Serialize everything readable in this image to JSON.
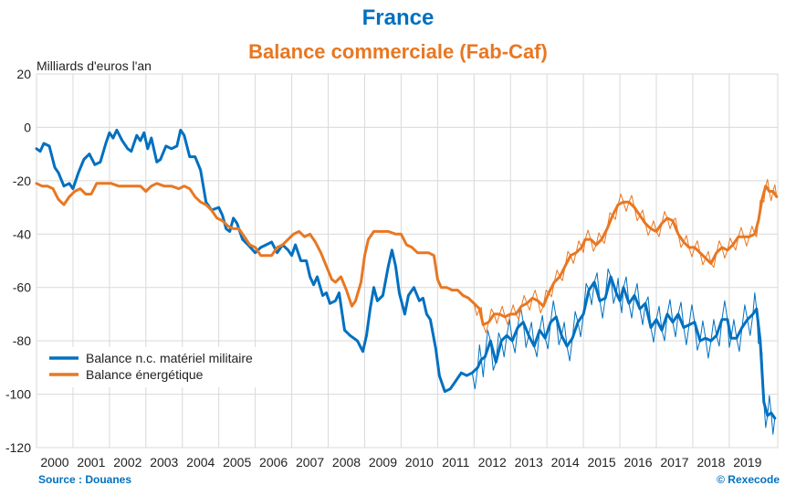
{
  "title": "France",
  "subtitle": "Balance commerciale (Fab-Caf)",
  "unit_label": "Milliards d'euros l'an",
  "source": "Source : Douanes",
  "copyright": "© Rexecode",
  "colors": {
    "blue": "#0070c0",
    "orange": "#e87722",
    "grid": "#d9d9d9"
  },
  "chart_data": {
    "type": "line",
    "xlabel": "",
    "ylabel": "Milliards d'euros l'an",
    "xlim": [
      2000,
      2020.33
    ],
    "ylim": [
      -120,
      20
    ],
    "yticks": [
      20,
      0,
      -20,
      -40,
      -60,
      -80,
      -100,
      -120
    ],
    "xticks": [
      "2000",
      "2001",
      "2002",
      "2003",
      "2004",
      "2005",
      "2006",
      "2007",
      "2008",
      "2009",
      "2010",
      "2011",
      "2012",
      "2013",
      "2014",
      "2015",
      "2016",
      "2017",
      "2018",
      "2019"
    ],
    "legend_position": "bottom-left",
    "series": [
      {
        "name": "Balance n.c. matériel militaire",
        "color": "#0070c0",
        "points": [
          [
            2000.0,
            -8
          ],
          [
            2000.1,
            -9
          ],
          [
            2000.2,
            -6
          ],
          [
            2000.35,
            -7
          ],
          [
            2000.5,
            -15
          ],
          [
            2000.6,
            -17
          ],
          [
            2000.75,
            -22
          ],
          [
            2000.9,
            -21
          ],
          [
            2001.0,
            -23
          ],
          [
            2001.15,
            -17
          ],
          [
            2001.3,
            -12
          ],
          [
            2001.45,
            -10
          ],
          [
            2001.6,
            -14
          ],
          [
            2001.75,
            -13
          ],
          [
            2001.9,
            -6
          ],
          [
            2002.0,
            -2
          ],
          [
            2002.1,
            -4
          ],
          [
            2002.2,
            -1
          ],
          [
            2002.35,
            -5
          ],
          [
            2002.5,
            -8
          ],
          [
            2002.6,
            -9
          ],
          [
            2002.75,
            -3
          ],
          [
            2002.85,
            -5
          ],
          [
            2002.95,
            -2
          ],
          [
            2003.05,
            -8
          ],
          [
            2003.15,
            -4
          ],
          [
            2003.3,
            -13
          ],
          [
            2003.4,
            -12
          ],
          [
            2003.55,
            -7
          ],
          [
            2003.7,
            -8
          ],
          [
            2003.85,
            -7
          ],
          [
            2003.95,
            -1
          ],
          [
            2004.05,
            -3
          ],
          [
            2004.2,
            -11
          ],
          [
            2004.35,
            -11
          ],
          [
            2004.5,
            -16
          ],
          [
            2004.65,
            -28
          ],
          [
            2004.8,
            -31
          ],
          [
            2005.0,
            -30
          ],
          [
            2005.1,
            -33
          ],
          [
            2005.2,
            -38
          ],
          [
            2005.3,
            -39
          ],
          [
            2005.4,
            -34
          ],
          [
            2005.5,
            -36
          ],
          [
            2005.65,
            -42
          ],
          [
            2005.8,
            -44
          ],
          [
            2006.0,
            -47
          ],
          [
            2006.15,
            -45
          ],
          [
            2006.3,
            -44
          ],
          [
            2006.45,
            -43
          ],
          [
            2006.6,
            -47
          ],
          [
            2006.75,
            -44
          ],
          [
            2006.9,
            -46
          ],
          [
            2007.0,
            -48
          ],
          [
            2007.1,
            -44
          ],
          [
            2007.25,
            -50
          ],
          [
            2007.4,
            -50
          ],
          [
            2007.5,
            -56
          ],
          [
            2007.6,
            -59
          ],
          [
            2007.7,
            -56
          ],
          [
            2007.85,
            -63
          ],
          [
            2007.95,
            -62
          ],
          [
            2008.05,
            -66
          ],
          [
            2008.2,
            -65
          ],
          [
            2008.3,
            -62
          ],
          [
            2008.45,
            -76
          ],
          [
            2008.6,
            -78
          ],
          [
            2008.8,
            -80
          ],
          [
            2008.95,
            -84
          ],
          [
            2009.05,
            -78
          ],
          [
            2009.15,
            -68
          ],
          [
            2009.25,
            -60
          ],
          [
            2009.35,
            -65
          ],
          [
            2009.5,
            -63
          ],
          [
            2009.65,
            -52
          ],
          [
            2009.75,
            -46
          ],
          [
            2009.85,
            -52
          ],
          [
            2009.95,
            -62
          ],
          [
            2010.1,
            -70
          ],
          [
            2010.2,
            -63
          ],
          [
            2010.35,
            -60
          ],
          [
            2010.5,
            -65
          ],
          [
            2010.6,
            -64
          ],
          [
            2010.7,
            -70
          ],
          [
            2010.8,
            -72
          ],
          [
            2010.95,
            -83
          ],
          [
            2011.05,
            -93
          ],
          [
            2011.2,
            -99
          ],
          [
            2011.35,
            -98
          ],
          [
            2011.5,
            -95
          ],
          [
            2011.65,
            -92
          ],
          [
            2011.8,
            -93
          ],
          [
            2011.95,
            -92
          ],
          [
            2012.1,
            -90
          ],
          [
            2012.2,
            -87
          ],
          [
            2012.3,
            -86
          ],
          [
            2012.45,
            -80
          ],
          [
            2012.6,
            -88
          ],
          [
            2012.75,
            -80
          ],
          [
            2012.9,
            -78
          ],
          [
            2013.05,
            -80
          ],
          [
            2013.2,
            -75
          ],
          [
            2013.35,
            -73
          ],
          [
            2013.5,
            -78
          ],
          [
            2013.65,
            -82
          ],
          [
            2013.8,
            -76
          ],
          [
            2013.95,
            -79
          ],
          [
            2014.1,
            -73
          ],
          [
            2014.25,
            -71
          ],
          [
            2014.4,
            -78
          ],
          [
            2014.55,
            -82
          ],
          [
            2014.7,
            -79
          ],
          [
            2014.85,
            -73
          ],
          [
            2015.0,
            -70
          ],
          [
            2015.15,
            -61
          ],
          [
            2015.3,
            -58
          ],
          [
            2015.45,
            -65
          ],
          [
            2015.6,
            -64
          ],
          [
            2015.75,
            -56
          ],
          [
            2015.9,
            -62
          ],
          [
            2016.0,
            -65
          ],
          [
            2016.1,
            -60
          ],
          [
            2016.25,
            -66
          ],
          [
            2016.4,
            -63
          ],
          [
            2016.55,
            -68
          ],
          [
            2016.7,
            -66
          ],
          [
            2016.85,
            -75
          ],
          [
            2017.0,
            -72
          ],
          [
            2017.15,
            -76
          ],
          [
            2017.3,
            -70
          ],
          [
            2017.45,
            -73
          ],
          [
            2017.6,
            -70
          ],
          [
            2017.75,
            -75
          ],
          [
            2017.9,
            -74
          ],
          [
            2018.05,
            -73
          ],
          [
            2018.2,
            -80
          ],
          [
            2018.35,
            -79
          ],
          [
            2018.5,
            -80
          ],
          [
            2018.65,
            -78
          ],
          [
            2018.8,
            -72
          ],
          [
            2018.95,
            -72
          ],
          [
            2019.05,
            -79
          ],
          [
            2019.2,
            -79
          ],
          [
            2019.35,
            -75
          ],
          [
            2019.5,
            -72
          ],
          [
            2019.65,
            -70
          ],
          [
            2019.75,
            -68
          ],
          [
            2019.85,
            -80
          ],
          [
            2019.95,
            -103
          ],
          [
            2020.05,
            -108
          ],
          [
            2020.15,
            -107
          ],
          [
            2020.25,
            -109
          ]
        ]
      },
      {
        "name": "Balance énergétique",
        "color": "#e87722",
        "points": [
          [
            2000.0,
            -21
          ],
          [
            2000.15,
            -22
          ],
          [
            2000.3,
            -22
          ],
          [
            2000.45,
            -23
          ],
          [
            2000.6,
            -27
          ],
          [
            2000.75,
            -29
          ],
          [
            2000.9,
            -26
          ],
          [
            2001.05,
            -24
          ],
          [
            2001.2,
            -23
          ],
          [
            2001.35,
            -25
          ],
          [
            2001.5,
            -25
          ],
          [
            2001.65,
            -21
          ],
          [
            2001.85,
            -21
          ],
          [
            2002.05,
            -21
          ],
          [
            2002.25,
            -22
          ],
          [
            2002.45,
            -22
          ],
          [
            2002.65,
            -22
          ],
          [
            2002.85,
            -22
          ],
          [
            2003.0,
            -24
          ],
          [
            2003.15,
            -22
          ],
          [
            2003.3,
            -21
          ],
          [
            2003.5,
            -22
          ],
          [
            2003.7,
            -22
          ],
          [
            2003.9,
            -23
          ],
          [
            2004.05,
            -22
          ],
          [
            2004.2,
            -23
          ],
          [
            2004.35,
            -26
          ],
          [
            2004.5,
            -28
          ],
          [
            2004.65,
            -29
          ],
          [
            2004.8,
            -31
          ],
          [
            2004.95,
            -34
          ],
          [
            2005.1,
            -35
          ],
          [
            2005.25,
            -37
          ],
          [
            2005.4,
            -38
          ],
          [
            2005.55,
            -38
          ],
          [
            2005.7,
            -41
          ],
          [
            2005.85,
            -44
          ],
          [
            2006.0,
            -45
          ],
          [
            2006.15,
            -48
          ],
          [
            2006.3,
            -48
          ],
          [
            2006.45,
            -48
          ],
          [
            2006.6,
            -45
          ],
          [
            2006.75,
            -44
          ],
          [
            2006.9,
            -42
          ],
          [
            2007.05,
            -40
          ],
          [
            2007.2,
            -39
          ],
          [
            2007.35,
            -41
          ],
          [
            2007.5,
            -40
          ],
          [
            2007.65,
            -43
          ],
          [
            2007.8,
            -47
          ],
          [
            2007.95,
            -52
          ],
          [
            2008.1,
            -57
          ],
          [
            2008.2,
            -58
          ],
          [
            2008.35,
            -56
          ],
          [
            2008.5,
            -61
          ],
          [
            2008.65,
            -67
          ],
          [
            2008.75,
            -65
          ],
          [
            2008.9,
            -58
          ],
          [
            2009.0,
            -48
          ],
          [
            2009.1,
            -42
          ],
          [
            2009.25,
            -39
          ],
          [
            2009.45,
            -39
          ],
          [
            2009.65,
            -39
          ],
          [
            2009.85,
            -40
          ],
          [
            2010.0,
            -40
          ],
          [
            2010.15,
            -44
          ],
          [
            2010.3,
            -45
          ],
          [
            2010.45,
            -47
          ],
          [
            2010.6,
            -47
          ],
          [
            2010.75,
            -47
          ],
          [
            2010.9,
            -48
          ],
          [
            2011.0,
            -57
          ],
          [
            2011.1,
            -60
          ],
          [
            2011.25,
            -60
          ],
          [
            2011.4,
            -61
          ],
          [
            2011.55,
            -61
          ],
          [
            2011.7,
            -63
          ],
          [
            2011.85,
            -64
          ],
          [
            2012.0,
            -66
          ],
          [
            2012.15,
            -68
          ],
          [
            2012.25,
            -74
          ],
          [
            2012.4,
            -73
          ],
          [
            2012.55,
            -70
          ],
          [
            2012.7,
            -70
          ],
          [
            2012.85,
            -71
          ],
          [
            2013.0,
            -70
          ],
          [
            2013.15,
            -70
          ],
          [
            2013.3,
            -67
          ],
          [
            2013.45,
            -66
          ],
          [
            2013.6,
            -64
          ],
          [
            2013.75,
            -65
          ],
          [
            2013.9,
            -67
          ],
          [
            2014.05,
            -62
          ],
          [
            2014.2,
            -58
          ],
          [
            2014.35,
            -56
          ],
          [
            2014.5,
            -52
          ],
          [
            2014.65,
            -48
          ],
          [
            2014.8,
            -47
          ],
          [
            2014.95,
            -45
          ],
          [
            2015.05,
            -42
          ],
          [
            2015.2,
            -42
          ],
          [
            2015.35,
            -44
          ],
          [
            2015.5,
            -42
          ],
          [
            2015.65,
            -38
          ],
          [
            2015.8,
            -33
          ],
          [
            2015.95,
            -29
          ],
          [
            2016.1,
            -28
          ],
          [
            2016.25,
            -28
          ],
          [
            2016.4,
            -30
          ],
          [
            2016.55,
            -33
          ],
          [
            2016.7,
            -36
          ],
          [
            2016.85,
            -38
          ],
          [
            2017.0,
            -39
          ],
          [
            2017.15,
            -36
          ],
          [
            2017.3,
            -34
          ],
          [
            2017.45,
            -35
          ],
          [
            2017.6,
            -40
          ],
          [
            2017.75,
            -43
          ],
          [
            2017.9,
            -45
          ],
          [
            2018.05,
            -45
          ],
          [
            2018.2,
            -47
          ],
          [
            2018.35,
            -49
          ],
          [
            2018.5,
            -51
          ],
          [
            2018.65,
            -47
          ],
          [
            2018.8,
            -45
          ],
          [
            2018.95,
            -46
          ],
          [
            2019.1,
            -44
          ],
          [
            2019.25,
            -41
          ],
          [
            2019.4,
            -41
          ],
          [
            2019.55,
            -41
          ],
          [
            2019.7,
            -40
          ],
          [
            2019.8,
            -35
          ],
          [
            2019.9,
            -27
          ],
          [
            2020.0,
            -22
          ],
          [
            2020.1,
            -24
          ],
          [
            2020.2,
            -24
          ],
          [
            2020.3,
            -26
          ]
        ]
      }
    ]
  }
}
